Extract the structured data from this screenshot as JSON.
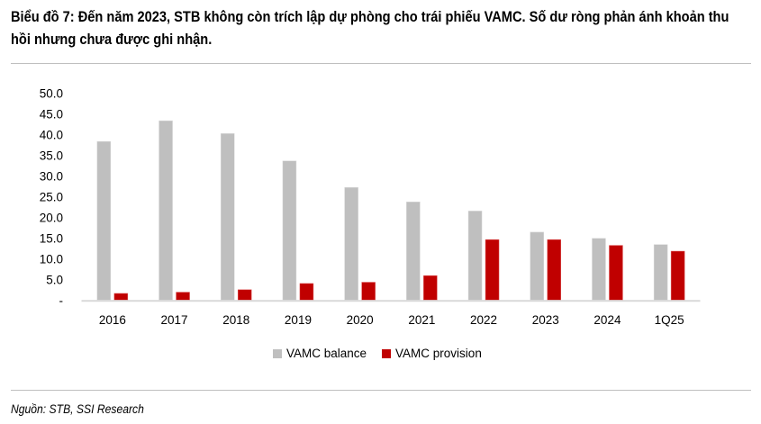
{
  "title": "Biểu đồ 7: Đến năm 2023, STB không còn trích lập dự phòng cho trái phiếu VAMC. Số dư ròng phản ánh khoản thu hồi nhưng chưa được ghi nhận.",
  "source": "Nguồn: STB, SSI Research",
  "chart_data": {
    "type": "bar",
    "categories": [
      "2016",
      "2017",
      "2018",
      "2019",
      "2020",
      "2021",
      "2022",
      "2023",
      "2024",
      "1Q25"
    ],
    "series": [
      {
        "name": "VAMC balance",
        "color": "#bfbfbf",
        "values": [
          38.3,
          43.3,
          40.2,
          33.6,
          27.2,
          23.7,
          21.5,
          16.4,
          14.9,
          13.4
        ]
      },
      {
        "name": "VAMC provision",
        "color": "#c00000",
        "values": [
          1.6,
          1.9,
          2.5,
          4.0,
          4.3,
          5.9,
          14.6,
          14.6,
          13.2,
          11.8
        ]
      }
    ],
    "yticks": [
      "-",
      "5.0",
      "10.0",
      "15.0",
      "20.0",
      "25.0",
      "30.0",
      "35.0",
      "40.0",
      "45.0",
      "50.0"
    ],
    "ylim": [
      0,
      50
    ],
    "legend": "bottom",
    "grid": false
  }
}
